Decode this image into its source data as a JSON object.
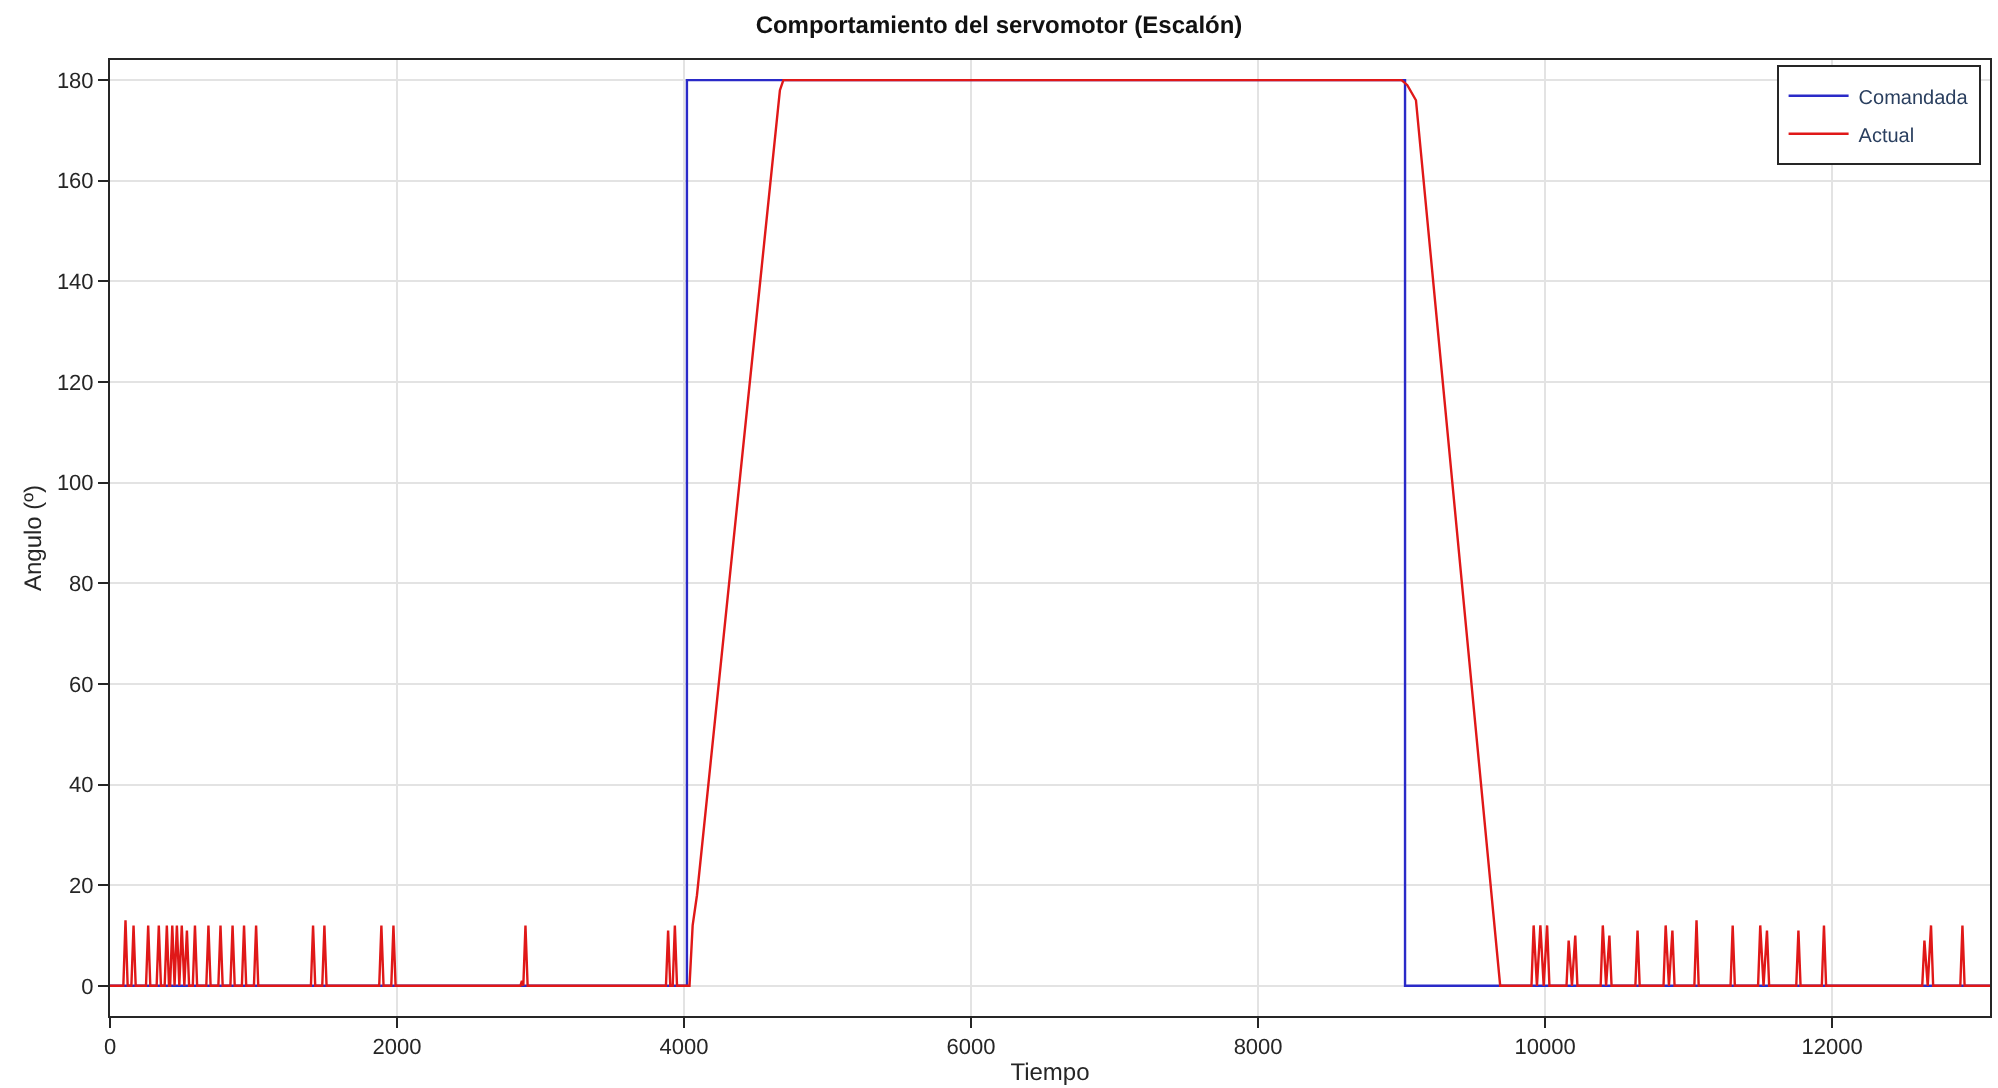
{
  "chart_data": {
    "type": "line",
    "title": "Comportamiento del servomotor (Escalón)",
    "xlabel": "Tiempo",
    "ylabel": "Angulo (º)",
    "xlim": [
      0,
      13100
    ],
    "ylim": [
      -6,
      184
    ],
    "xticks": [
      0,
      2000,
      4000,
      6000,
      8000,
      10000,
      12000
    ],
    "yticks": [
      0,
      20,
      40,
      60,
      80,
      100,
      120,
      140,
      160,
      180
    ],
    "grid": true,
    "legend": "top right",
    "marker": "none",
    "line_style": "solid",
    "series": [
      {
        "name": "Comandada",
        "color": "#2a2ac8",
        "x": [
          0,
          4020,
          4020,
          9024,
          9024,
          13100
        ],
        "values": [
          0,
          0,
          180,
          180,
          0,
          0
        ]
      },
      {
        "name": "Actual",
        "color": "#e01818",
        "x": [
          0,
          93,
          108,
          123,
          149,
          164,
          179,
          251,
          266,
          281,
          325,
          340,
          355,
          381,
          396,
          411,
          419,
          434,
          450,
          466,
          483,
          500,
          518,
          536,
          551,
          577,
          592,
          607,
          671,
          686,
          701,
          755,
          770,
          785,
          839,
          854,
          869,
          919,
          934,
          949,
          1003,
          1018,
          1033,
          1400,
          1415,
          1430,
          1479,
          1494,
          1509,
          1876,
          1891,
          1906,
          1960,
          1975,
          1990,
          2860,
          2870,
          2880,
          2895,
          2910,
          3874,
          3889,
          3904,
          3921,
          3936,
          3951,
          4038,
          4060,
          4090,
          4668,
          4692,
          9000,
          9040,
          9100,
          9687,
          9905,
          9920,
          9943,
          9967,
          9990,
          10014,
          10030,
          10149,
          10164,
          10187,
          10210,
          10225,
          10387,
          10402,
          10425,
          10448,
          10463,
          10629,
          10644,
          10659,
          10825,
          10840,
          10863,
          10887,
          10902,
          11040,
          11055,
          11070,
          11292,
          11307,
          11322,
          11484,
          11499,
          11522,
          11546,
          11561,
          11750,
          11765,
          11780,
          11928,
          11943,
          11958,
          12628,
          12643,
          12666,
          12689,
          12704,
          12893,
          12908,
          12923,
          13100
        ],
        "values": [
          0,
          0,
          13,
          0,
          0,
          12,
          0,
          0,
          12,
          0,
          0,
          12,
          0,
          0,
          12,
          0,
          0,
          12,
          0,
          12,
          0,
          12,
          0,
          11,
          0,
          0,
          12,
          0,
          0,
          12,
          0,
          0,
          12,
          0,
          0,
          12,
          0,
          0,
          12,
          0,
          0,
          12,
          0,
          0,
          12,
          0,
          0,
          12,
          0,
          0,
          12,
          0,
          0,
          12,
          0,
          0,
          1,
          0,
          12,
          0,
          0,
          11,
          0,
          0,
          12,
          0,
          0,
          12,
          18,
          178,
          180,
          180,
          179,
          176,
          0,
          0,
          12,
          0,
          12,
          0,
          12,
          0,
          0,
          9,
          0,
          10,
          0,
          0,
          12,
          0,
          10,
          0,
          0,
          11,
          0,
          0,
          12,
          0,
          11,
          0,
          0,
          13,
          0,
          0,
          12,
          0,
          0,
          12,
          0,
          11,
          0,
          0,
          11,
          0,
          0,
          12,
          0,
          0,
          9,
          0,
          12,
          0,
          0,
          12,
          0,
          0
        ]
      }
    ]
  }
}
